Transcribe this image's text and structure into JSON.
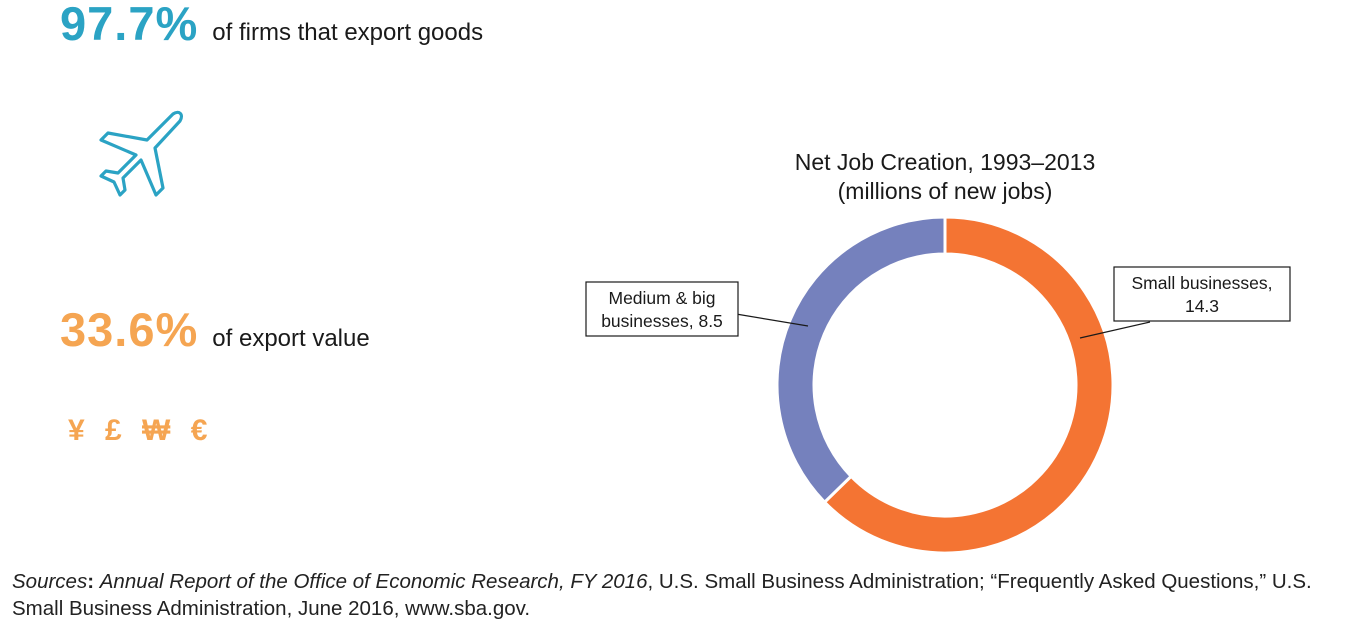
{
  "stats": {
    "export_firms": {
      "value": "97.7%",
      "label": "of firms that export goods",
      "color": "#2ba3c4"
    },
    "export_value": {
      "value": "33.6%",
      "label": "of export value",
      "color": "#f5a552"
    },
    "currency_symbols": "¥ £ ₩ €"
  },
  "icons": {
    "plane": "airplane-icon"
  },
  "chart_data": {
    "type": "pie",
    "title": "Net Job Creation, 1993–2013",
    "subtitle": "(millions of new jobs)",
    "categories": [
      "Small businesses",
      "Medium & big businesses"
    ],
    "values": [
      14.3,
      8.5
    ],
    "colors": [
      "#f47433",
      "#7581bd"
    ],
    "labels": [
      {
        "line1": "Small businesses,",
        "line2": "14.3"
      },
      {
        "line1": "Medium & big",
        "line2": "businesses, 8.5"
      }
    ],
    "donut": true
  },
  "sources": {
    "lead": "Sources",
    "colon": ": ",
    "italic1": "Annual Report of the Office of Economic Research, FY 2016",
    "text1": ", U.S. Small Business Administration; “Frequently Asked Questions,” U.S. Small Business Administration, June 2016, www.sba.gov."
  }
}
